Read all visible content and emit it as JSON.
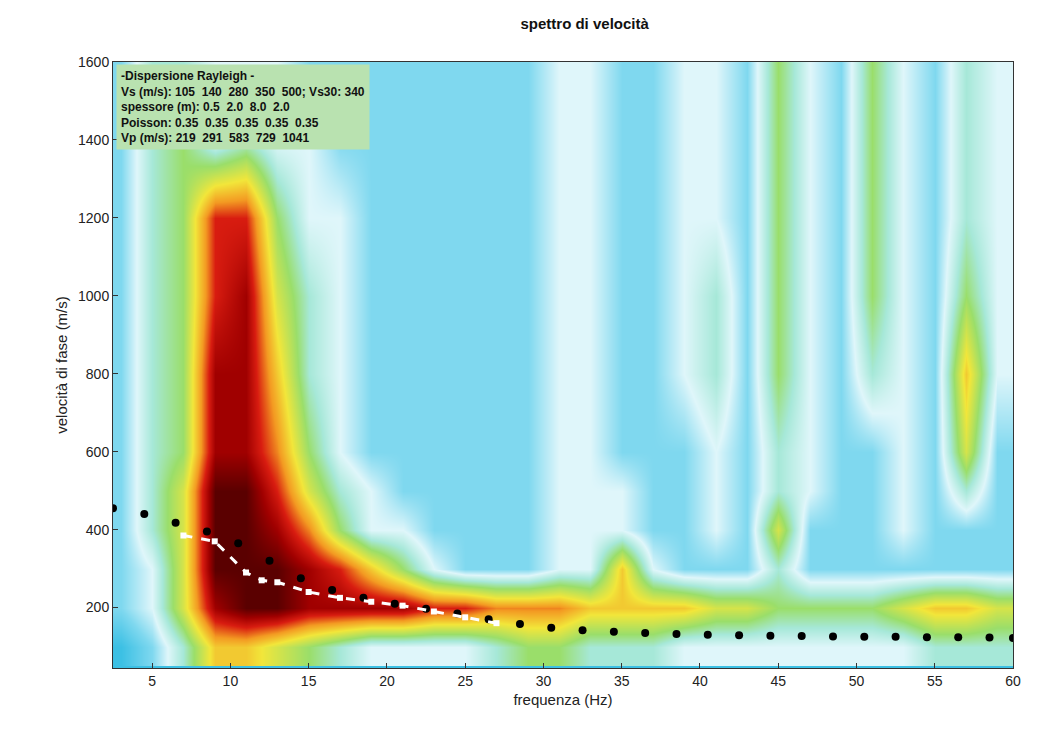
{
  "chart_data": {
    "type": "heatmap",
    "title": "spettro di velocità",
    "x_label": "frequenza (Hz)",
    "y_label": "velocità di fase (m/s)",
    "xlim": [
      2.5,
      60
    ],
    "ylim": [
      45,
      1600
    ],
    "xticks": [
      5,
      10,
      15,
      20,
      25,
      30,
      35,
      40,
      45,
      50,
      55,
      60
    ],
    "yticks": [
      200,
      400,
      600,
      800,
      1000,
      1200,
      1400,
      1600
    ],
    "grid": false,
    "annotations": [
      "-Dispersione Rayleigh -",
      "Vs (m/s): 105  140  280  350  500; Vs30: 340",
      "spessore (m): 0.5  2.0  8.0  2.0",
      "Poisson: 0.35  0.35  0.35  0.35  0.35",
      "Vp (m/s): 219  291  583  729  1041"
    ],
    "heatmap": {
      "x": [
        3,
        5,
        7,
        9,
        11,
        13,
        15,
        17,
        19,
        21,
        23,
        25,
        27,
        29,
        31,
        33,
        35,
        37,
        39,
        41,
        43,
        45,
        47,
        49,
        51,
        53,
        55,
        57,
        59
      ],
      "y": [
        100,
        200,
        300,
        400,
        500,
        600,
        800,
        1000,
        1200,
        1400,
        1600
      ],
      "z": [
        [
          0,
          1,
          3,
          6,
          6,
          5,
          4,
          3,
          2,
          2,
          2,
          2,
          3,
          4,
          4,
          3,
          3,
          3,
          2,
          2,
          2,
          2,
          2,
          2,
          2,
          2,
          3,
          3,
          3
        ],
        [
          1,
          2,
          5,
          9,
          10,
          10,
          9,
          9,
          9,
          9,
          8,
          8,
          7,
          7,
          7,
          6,
          6,
          6,
          6,
          5,
          5,
          4,
          4,
          4,
          4,
          5,
          6,
          6,
          5
        ],
        [
          1,
          2,
          5,
          10,
          10,
          10,
          9,
          8,
          6,
          4,
          2,
          1,
          1,
          1,
          2,
          2,
          6,
          2,
          1,
          1,
          1,
          3,
          1,
          1,
          1,
          1,
          1,
          1,
          1
        ],
        [
          1,
          3,
          5,
          10,
          10,
          9,
          7,
          4,
          2,
          2,
          1,
          1,
          1,
          1,
          2,
          2,
          2,
          1,
          1,
          2,
          1,
          5,
          1,
          1,
          1,
          2,
          1,
          1,
          1
        ],
        [
          1,
          3,
          5,
          10,
          10,
          8,
          5,
          3,
          2,
          1,
          1,
          1,
          1,
          1,
          2,
          2,
          2,
          1,
          1,
          2,
          1,
          3,
          2,
          1,
          1,
          2,
          1,
          3,
          1
        ],
        [
          1,
          3,
          4,
          9,
          9,
          7,
          4,
          2,
          1,
          1,
          1,
          1,
          1,
          1,
          2,
          2,
          1,
          1,
          1,
          2,
          1,
          3,
          2,
          1,
          1,
          2,
          1,
          5,
          1
        ],
        [
          1,
          3,
          4,
          9,
          9,
          6,
          3,
          2,
          1,
          1,
          1,
          1,
          1,
          1,
          2,
          2,
          1,
          1,
          2,
          3,
          1,
          4,
          2,
          1,
          3,
          2,
          1,
          6,
          2
        ],
        [
          1,
          3,
          4,
          8,
          9,
          5,
          3,
          2,
          1,
          1,
          1,
          1,
          1,
          1,
          2,
          2,
          1,
          1,
          2,
          3,
          1,
          4,
          2,
          1,
          4,
          2,
          1,
          4,
          2
        ],
        [
          1,
          3,
          4,
          8,
          8,
          4,
          2,
          2,
          1,
          1,
          1,
          1,
          1,
          1,
          2,
          2,
          1,
          1,
          2,
          2,
          1,
          4,
          2,
          1,
          4,
          2,
          1,
          3,
          2
        ],
        [
          1,
          3,
          4,
          2,
          3,
          2,
          2,
          1,
          1,
          1,
          1,
          1,
          1,
          1,
          2,
          2,
          1,
          1,
          2,
          2,
          1,
          4,
          2,
          1,
          4,
          2,
          1,
          3,
          2
        ],
        [
          1,
          3,
          3,
          2,
          2,
          2,
          1,
          1,
          1,
          1,
          1,
          1,
          1,
          1,
          2,
          2,
          1,
          1,
          2,
          2,
          1,
          4,
          2,
          1,
          4,
          2,
          1,
          3,
          2
        ]
      ]
    },
    "series": [
      {
        "color": "#000000",
        "marker": "circle",
        "line_style": "none",
        "x": [
          2.5,
          4.5,
          6.5,
          8.5,
          10.5,
          12.5,
          14.5,
          16.5,
          18.5,
          20.5,
          22.5,
          24.5,
          26.5,
          28.5,
          30.5,
          32.5,
          34.5,
          36.5,
          38.5,
          40.5,
          42.5,
          44.5,
          46.5,
          48.5,
          50.5,
          52.5,
          54.5,
          56.5,
          58.5,
          60
        ],
        "values": [
          455,
          440,
          418,
          395,
          365,
          320,
          275,
          245,
          225,
          210,
          197,
          185,
          170,
          158,
          148,
          142,
          138,
          135,
          132,
          130,
          129,
          128,
          127,
          126,
          125,
          125,
          124,
          124,
          123,
          122
        ]
      },
      {
        "color": "#ffffff",
        "marker": "square",
        "line_style": "dash",
        "x": [
          7,
          9,
          11,
          12,
          13,
          15,
          17,
          19,
          21,
          23,
          25,
          27
        ],
        "values": [
          385,
          370,
          290,
          270,
          265,
          240,
          225,
          215,
          205,
          190,
          175,
          160
        ]
      }
    ]
  }
}
